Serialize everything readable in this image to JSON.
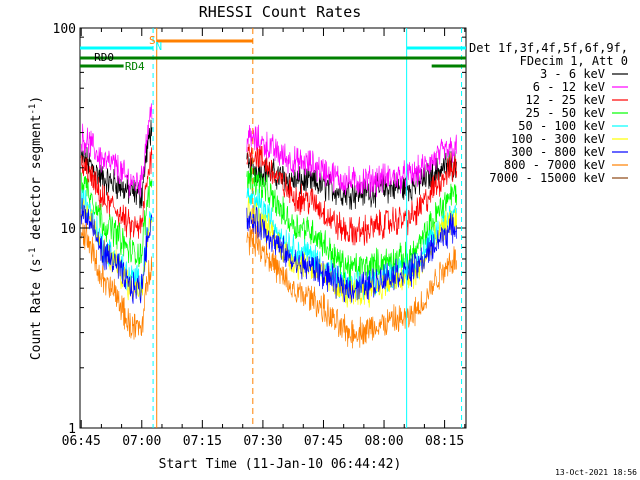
{
  "chart_data": {
    "type": "line",
    "title": "RHESSI Count Rates",
    "xlabel": "Start Time (11-Jan-10 06:44:42)",
    "ylabel_main": "Count Rate (s",
    "ylabel_sup1": "-1",
    "ylabel_mid": " detector segment",
    "ylabel_sup2": "-1",
    "ylabel_end": ")",
    "yscale": "log",
    "ylim": [
      1,
      100
    ],
    "xlim_min": [
      -0.3,
      95.3
    ],
    "x_ticks": [
      {
        "min": 0,
        "label": "06:45"
      },
      {
        "min": 15,
        "label": "07:00"
      },
      {
        "min": 30,
        "label": "07:15"
      },
      {
        "min": 45,
        "label": "07:30"
      },
      {
        "min": 60,
        "label": "07:45"
      },
      {
        "min": 75,
        "label": "08:00"
      },
      {
        "min": 90,
        "label": "08:15"
      }
    ],
    "y_ticks": [
      {
        "value": 1,
        "label": "1"
      },
      {
        "value": 10,
        "label": "10"
      },
      {
        "value": 100,
        "label": "100"
      }
    ],
    "legend_title": [
      "Det 1f,3f,4f,5f,6f,9f,",
      "FDecim 1, Att 0"
    ],
    "series": [
      {
        "name": "3 - 6 keV",
        "color": "#000000",
        "values": [
          22,
          17,
          15,
          14,
          20,
          17,
          15,
          16,
          21
        ]
      },
      {
        "name": "6 - 12 keV",
        "color": "#ff00ff",
        "values": [
          28,
          21,
          17,
          17,
          28,
          21,
          17,
          18,
          25
        ]
      },
      {
        "name": "12 - 25 keV",
        "color": "#ff0000",
        "values": [
          20,
          13,
          10,
          10,
          24,
          14,
          9.5,
          11,
          20
        ]
      },
      {
        "name": "25 - 50 keV",
        "color": "#00ff00",
        "values": [
          17,
          10,
          7.5,
          7.5,
          18,
          10,
          6.3,
          7,
          15
        ]
      },
      {
        "name": "50 - 100 keV",
        "color": "#00ffff",
        "values": [
          14,
          7.5,
          5.5,
          5.3,
          14,
          7.5,
          5,
          6,
          12
        ]
      },
      {
        "name": "100 - 300 keV",
        "color": "#ffff00",
        "values": [
          13,
          7,
          5,
          5,
          12,
          6.5,
          4.7,
          5.5,
          11
        ]
      },
      {
        "name": "300 - 800 keV",
        "color": "#0000ff",
        "values": [
          12,
          7,
          5,
          5,
          11,
          6.5,
          5,
          6,
          10
        ]
      },
      {
        "name": "800 - 7000 keV",
        "color": "#ff8000",
        "values": [
          9.5,
          5,
          3.2,
          3,
          9,
          4.6,
          3,
          3.5,
          7
        ]
      },
      {
        "name": "7000 - 15000 keV",
        "color": "#8b4513",
        "values": [
          0,
          0,
          0,
          0,
          0,
          0,
          0,
          0,
          0
        ]
      }
    ],
    "series_segments": [
      [
        0,
        17.5
      ],
      [
        41,
        93
      ]
    ],
    "spike_label": "N",
    "flag_labels": {
      "saa": "S",
      "rd0": "RD0",
      "rd4": "RD4"
    },
    "timestamp": "13-Oct-2021 18:56"
  }
}
